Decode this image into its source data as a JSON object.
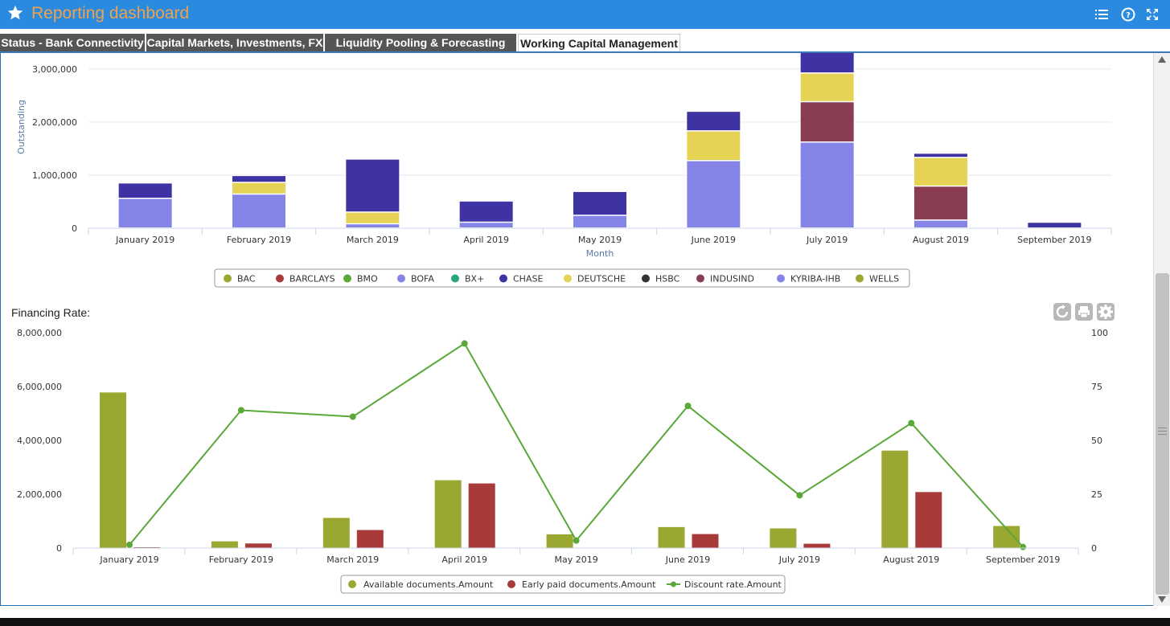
{
  "header": {
    "title": "Reporting dashboard",
    "icons": [
      "star-icon",
      "list-icon",
      "help-icon",
      "expand-icon"
    ]
  },
  "tabs": [
    {
      "label": "Status - Bank Connectivity",
      "active": false
    },
    {
      "label": "Capital Markets, Investments, FX",
      "active": false
    },
    {
      "label": "Liquidity Pooling & Forecasting",
      "active": false
    },
    {
      "label": "Working Capital Management",
      "active": true
    }
  ],
  "colors": {
    "BAC": "#9aa832",
    "BARCLAYS": "#a83a3a",
    "BMO": "#5aa83a",
    "BOFA": "#8585e8",
    "BX+": "#2aa67a",
    "CHASE": "#3f33a3",
    "DEUTSCHE": "#e6d356",
    "HSBC": "#333333",
    "INDUSIND": "#8a3c52",
    "KYRIBA-IHB": "#8585e8",
    "WELLS": "#9aa832",
    "available": "#9aa832",
    "earlypaid": "#a83a3a",
    "discount": "#5aa83a"
  },
  "financing": {
    "title": "Financing Rate:",
    "controls": [
      "refresh-icon",
      "print-icon",
      "gear-icon"
    ]
  },
  "chart_data": [
    {
      "type": "bar",
      "stacked": true,
      "xlabel": "Month",
      "ylabel": "Outstanding",
      "ylim": [
        0,
        3300000
      ],
      "yticks": [
        0,
        1000000,
        2000000,
        3000000
      ],
      "ytick_labels": [
        "0",
        "1,000,000",
        "2,000,000",
        "3,000,000"
      ],
      "categories": [
        "January 2019",
        "February 2019",
        "March 2019",
        "April 2019",
        "May 2019",
        "June 2019",
        "July 2019",
        "August 2019",
        "September 2019"
      ],
      "legend": [
        "BAC",
        "BARCLAYS",
        "BMO",
        "BOFA",
        "BX+",
        "CHASE",
        "DEUTSCHE",
        "HSBC",
        "INDUSIND",
        "KYRIBA-IHB",
        "WELLS"
      ],
      "legend_position": "bottom-center",
      "series": [
        {
          "name": "KYRIBA-IHB",
          "values": [
            560000,
            640000,
            80000,
            110000,
            240000,
            1270000,
            1620000,
            150000,
            0
          ]
        },
        {
          "name": "INDUSIND",
          "values": [
            0,
            0,
            0,
            0,
            0,
            0,
            760000,
            640000,
            0
          ]
        },
        {
          "name": "DEUTSCHE",
          "values": [
            0,
            220000,
            220000,
            0,
            0,
            560000,
            540000,
            540000,
            0
          ]
        },
        {
          "name": "CHASE",
          "values": [
            290000,
            130000,
            1000000,
            400000,
            450000,
            370000,
            430000,
            80000,
            110000
          ]
        }
      ]
    },
    {
      "type": "bar",
      "title": "",
      "ylim_left": [
        0,
        8000000
      ],
      "yticks_left": [
        0,
        2000000,
        4000000,
        6000000,
        8000000
      ],
      "ytick_labels_left": [
        "0",
        "2,000,000",
        "4,000,000",
        "6,000,000",
        "8,000,000"
      ],
      "ylim_right": [
        0,
        100
      ],
      "yticks_right": [
        0,
        25,
        50,
        75,
        100
      ],
      "ytick_labels_right": [
        "0",
        "25",
        "50",
        "75",
        "100"
      ],
      "categories": [
        "January 2019",
        "February 2019",
        "March 2019",
        "April 2019",
        "May 2019",
        "June 2019",
        "July 2019",
        "August 2019",
        "September 2019"
      ],
      "legend_position": "bottom-center",
      "series": [
        {
          "name": "Available documents.Amount",
          "kind": "bar",
          "values": [
            5780000,
            250000,
            1120000,
            2520000,
            510000,
            780000,
            730000,
            3620000,
            820000
          ]
        },
        {
          "name": "Early paid documents.Amount",
          "kind": "bar",
          "values": [
            30000,
            170000,
            670000,
            2400000,
            0,
            520000,
            160000,
            2080000,
            0
          ]
        },
        {
          "name": "Discount rate.Amount",
          "kind": "line",
          "axis": "right",
          "values": [
            1.5,
            64,
            61,
            95,
            3.5,
            66,
            24.5,
            58,
            0.5
          ]
        }
      ]
    }
  ]
}
